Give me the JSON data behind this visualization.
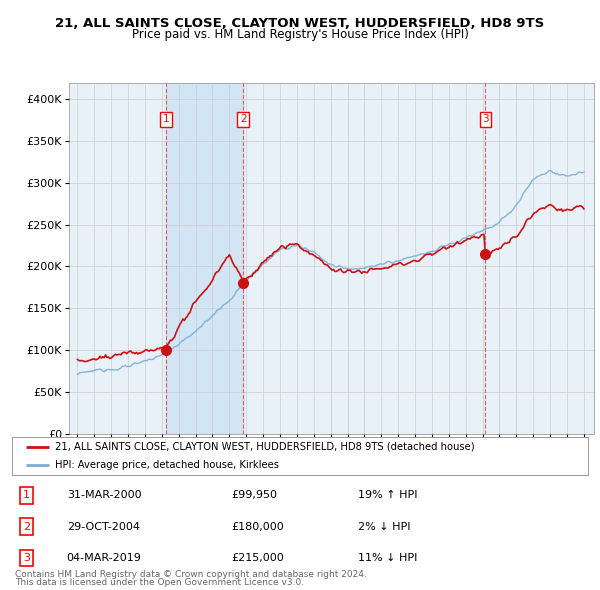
{
  "title1": "21, ALL SAINTS CLOSE, CLAYTON WEST, HUDDERSFIELD, HD8 9TS",
  "title2": "Price paid vs. HM Land Registry's House Price Index (HPI)",
  "ylim": [
    0,
    420000
  ],
  "yticks": [
    0,
    50000,
    100000,
    150000,
    200000,
    250000,
    300000,
    350000,
    400000
  ],
  "ytick_labels": [
    "£0",
    "£50K",
    "£100K",
    "£150K",
    "£200K",
    "£250K",
    "£300K",
    "£350K",
    "£400K"
  ],
  "hpi_color": "#7aadd4",
  "price_color": "#cc1111",
  "grid_color": "#cccccc",
  "bg_color": "#ffffff",
  "plot_bg_color": "#e8f0f8",
  "shade_color": "#d0e4f5",
  "vline_color": "#dd4444",
  "sales": [
    {
      "year": 2000.25,
      "price": 99950,
      "label": "1"
    },
    {
      "year": 2004.83,
      "price": 180000,
      "label": "2"
    },
    {
      "year": 2019.17,
      "price": 215000,
      "label": "3"
    }
  ],
  "sale_annotations": [
    {
      "label": "1",
      "date": "31-MAR-2000",
      "price": "£99,950",
      "hpi_rel": "19% ↑ HPI"
    },
    {
      "label": "2",
      "date": "29-OCT-2004",
      "price": "£180,000",
      "hpi_rel": "2% ↓ HPI"
    },
    {
      "label": "3",
      "date": "04-MAR-2019",
      "price": "£215,000",
      "hpi_rel": "11% ↓ HPI"
    }
  ],
  "legend_line1": "21, ALL SAINTS CLOSE, CLAYTON WEST, HUDDERSFIELD, HD8 9TS (detached house)",
  "legend_line2": "HPI: Average price, detached house, Kirklees",
  "footer1": "Contains HM Land Registry data © Crown copyright and database right 2024.",
  "footer2": "This data is licensed under the Open Government Licence v3.0."
}
